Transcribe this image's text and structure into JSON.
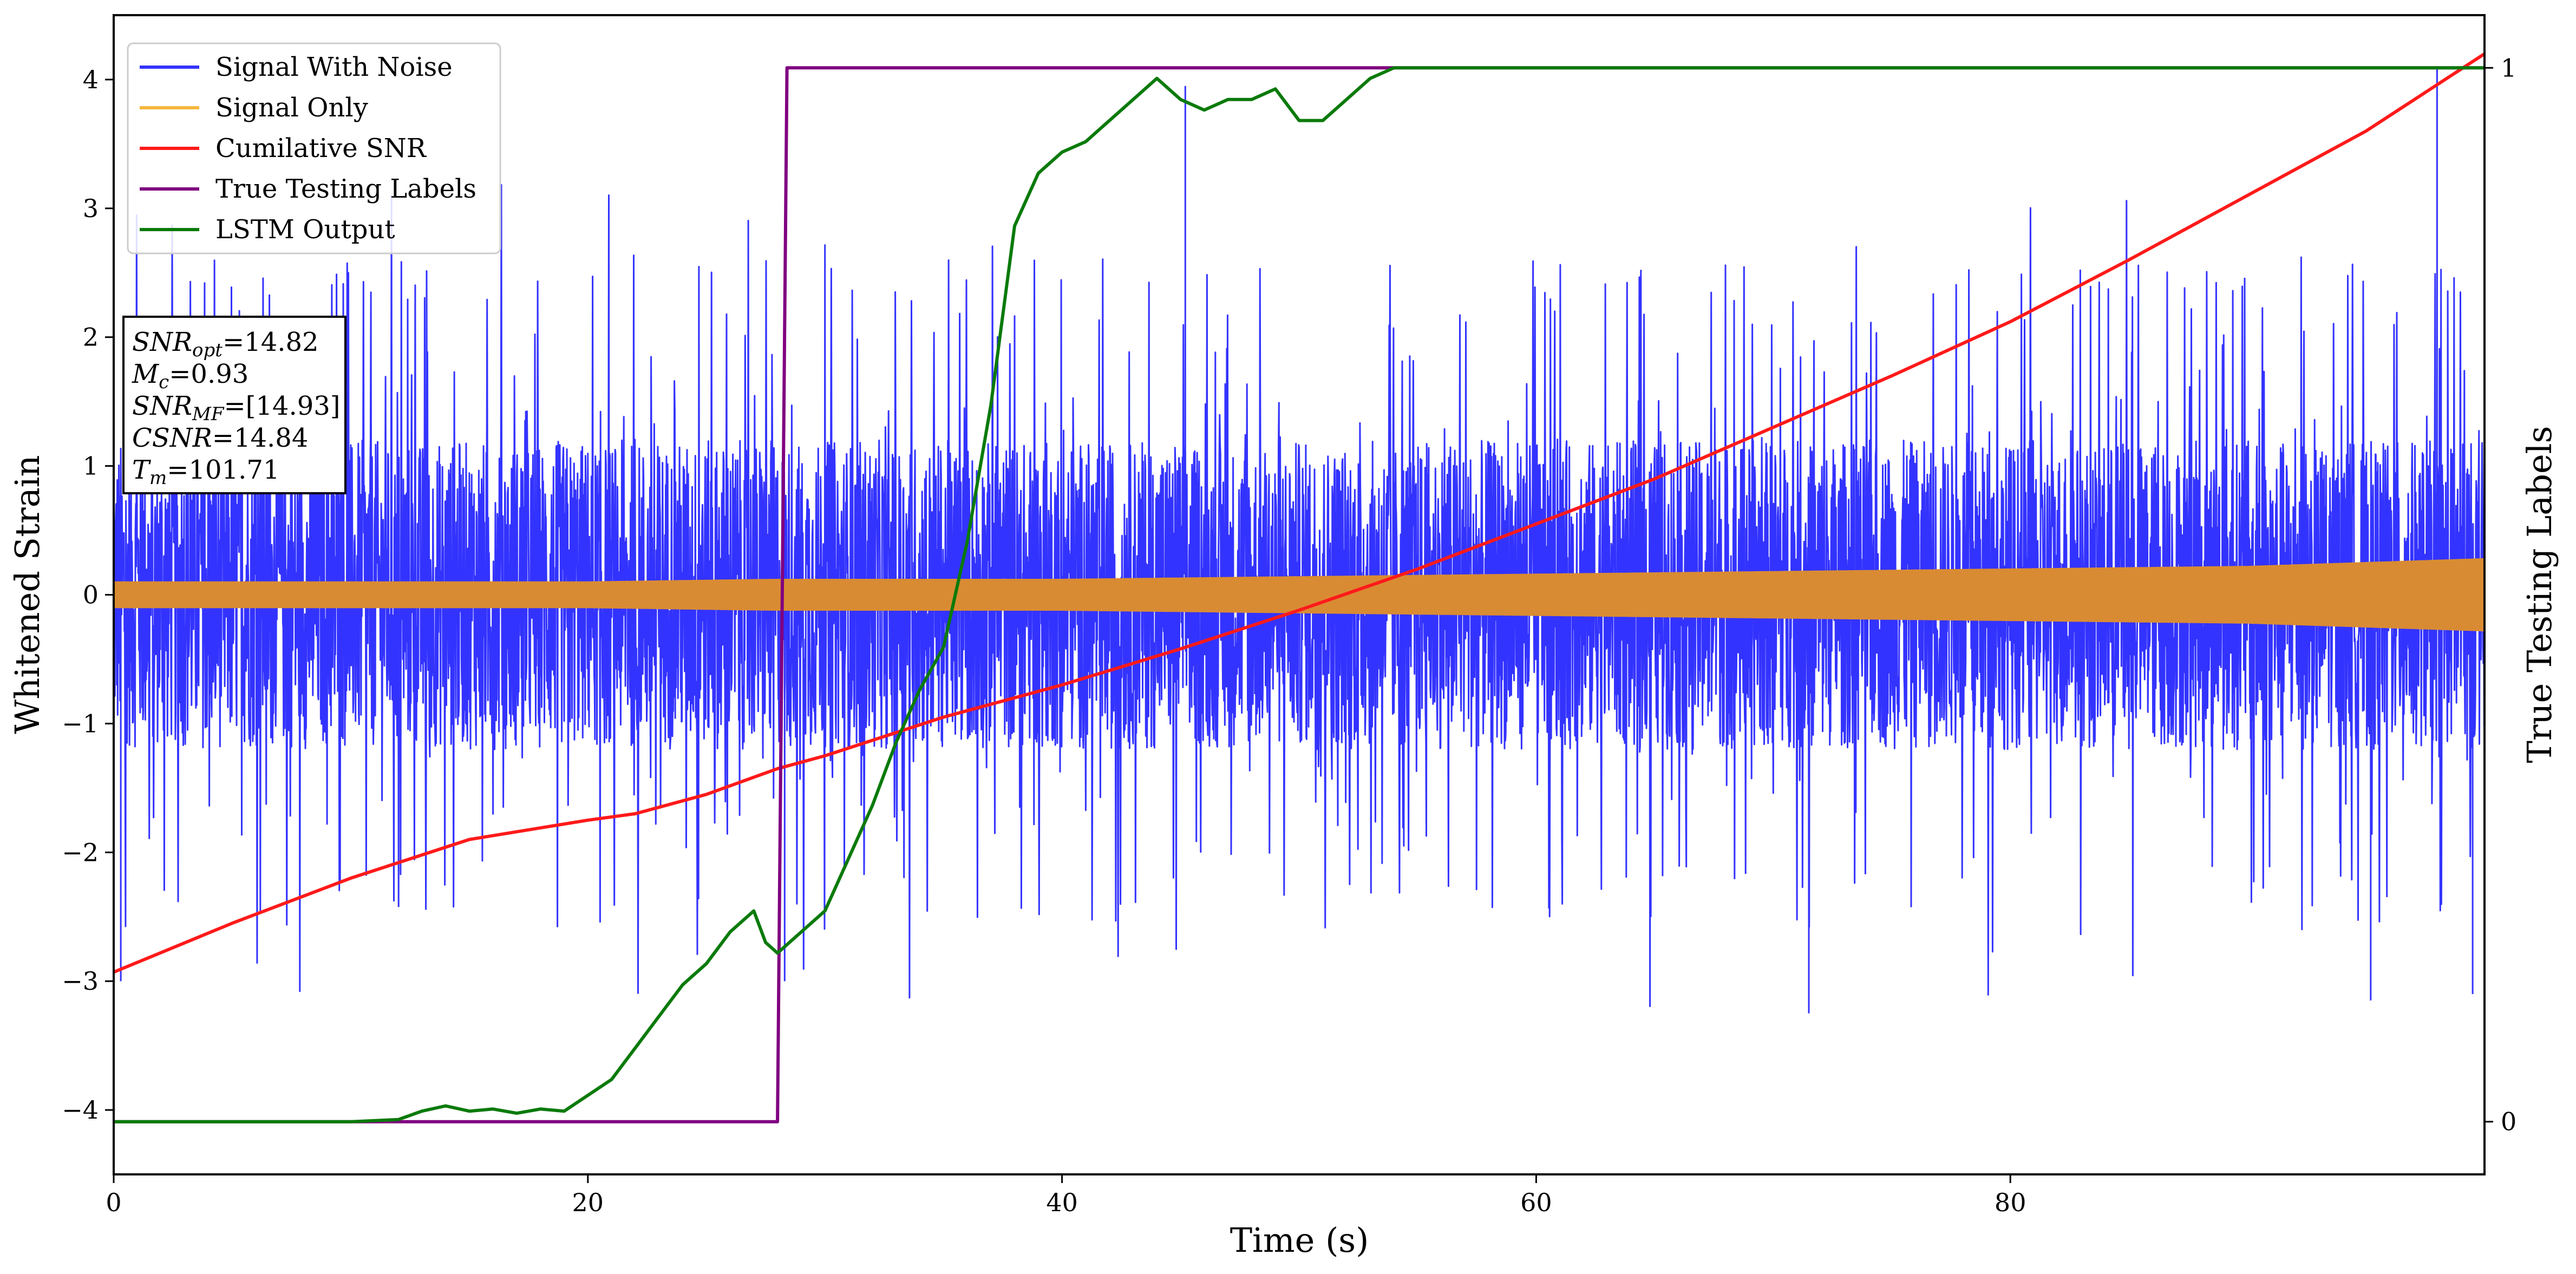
{
  "colors": {
    "noise": "#3333ff",
    "signal": "#d98b33",
    "signal_legend": "#f5b73c",
    "csnr": "#ff1a1a",
    "labels": "#800080",
    "lstm": "#0a7a0a"
  },
  "chart_data": {
    "type": "line",
    "xlabel": "Time (s)",
    "ylabel": "Whitened Strain",
    "y2label": "True Testing Labels",
    "xlim": [
      0,
      100
    ],
    "ylim": [
      -4.5,
      4.5
    ],
    "y2lim": [
      -0.05,
      1.05
    ],
    "x_ticks": [
      0,
      20,
      40,
      60,
      80
    ],
    "x_tick_labels": [
      "0",
      "20",
      "40",
      "60",
      "80"
    ],
    "y_ticks": [
      -4,
      -3,
      -2,
      -1,
      0,
      1,
      2,
      3,
      4
    ],
    "y_tick_labels": [
      "−4",
      "−3",
      "−2",
      "−1",
      "0",
      "1",
      "2",
      "3",
      "4"
    ],
    "y2_ticks": [
      0,
      1
    ],
    "y2_tick_labels": [
      "0",
      "1"
    ],
    "legend": {
      "position": "top-left",
      "entries": [
        {
          "label": "Signal With Noise",
          "key": "noise"
        },
        {
          "label": "Signal Only",
          "key": "signal_legend"
        },
        {
          "label": "Cumilative SNR",
          "key": "csnr"
        },
        {
          "label": "True Testing Labels",
          "key": "labels"
        },
        {
          "label": "LSTM Output",
          "key": "lstm"
        }
      ]
    },
    "annotation": {
      "lines": [
        {
          "sym": "SNR",
          "sub": "opt",
          "value": "=14.82"
        },
        {
          "sym": "M",
          "sub": "c",
          "value": "=0.93"
        },
        {
          "sym": "SNR",
          "sub": "MF",
          "value": "=[14.93]"
        },
        {
          "sym": "CSNR",
          "sub": "",
          "value": "=14.84"
        },
        {
          "sym": "T",
          "sub": "m",
          "value": "=101.71"
        }
      ]
    },
    "series": [
      {
        "name": "Signal With Noise",
        "axis": "left",
        "style": "dense-noise",
        "noise_band": {
          "typical_abs": 1.2,
          "extreme_min": -3.25,
          "extreme_max": 4.1
        }
      },
      {
        "name": "Signal Only",
        "axis": "left",
        "style": "envelope",
        "x": [
          0,
          20,
          28,
          40,
          60,
          80,
          90,
          95,
          100
        ],
        "upper": [
          0.1,
          0.1,
          0.12,
          0.12,
          0.16,
          0.2,
          0.22,
          0.25,
          0.28
        ],
        "lower": [
          -0.1,
          -0.1,
          -0.12,
          -0.12,
          -0.16,
          -0.2,
          -0.22,
          -0.25,
          -0.28
        ]
      },
      {
        "name": "Cumilative SNR",
        "axis": "left",
        "x": [
          0,
          5,
          10,
          15,
          20,
          22,
          25,
          28,
          30,
          35,
          40,
          45,
          50,
          55,
          60,
          65,
          70,
          75,
          80,
          85,
          90,
          95,
          100
        ],
        "y": [
          -2.93,
          -2.55,
          -2.2,
          -1.9,
          -1.75,
          -1.7,
          -1.55,
          -1.35,
          -1.25,
          -0.95,
          -0.7,
          -0.42,
          -0.12,
          0.2,
          0.55,
          0.9,
          1.3,
          1.7,
          2.12,
          2.6,
          3.1,
          3.6,
          4.2
        ]
      },
      {
        "name": "True Testing Labels",
        "axis": "right",
        "x": [
          0,
          28,
          28.4,
          100
        ],
        "y": [
          0,
          0,
          1,
          1
        ]
      },
      {
        "name": "LSTM Output",
        "axis": "right",
        "x": [
          0,
          10,
          12,
          13,
          14,
          15,
          16,
          17,
          18,
          19,
          20,
          21,
          22,
          23,
          24,
          25,
          26,
          27,
          27.5,
          28,
          29,
          30,
          31,
          32,
          33,
          34,
          35,
          36,
          37,
          38,
          39,
          40,
          41,
          42,
          43,
          44,
          45,
          46,
          47,
          48,
          49,
          50,
          51,
          52,
          53,
          54,
          56,
          60,
          65,
          72,
          80,
          90,
          100
        ],
        "y": [
          0,
          0,
          0.002,
          0.01,
          0.015,
          0.01,
          0.012,
          0.008,
          0.012,
          0.01,
          0.025,
          0.04,
          0.07,
          0.1,
          0.13,
          0.15,
          0.18,
          0.2,
          0.17,
          0.16,
          0.18,
          0.2,
          0.25,
          0.3,
          0.36,
          0.41,
          0.45,
          0.55,
          0.68,
          0.85,
          0.9,
          0.92,
          0.93,
          0.95,
          0.97,
          0.99,
          0.97,
          0.96,
          0.97,
          0.97,
          0.98,
          0.95,
          0.95,
          0.97,
          0.99,
          1.0,
          1.0,
          1.0,
          1.0,
          1.0,
          1.0,
          1.0,
          1.0
        ]
      }
    ]
  }
}
